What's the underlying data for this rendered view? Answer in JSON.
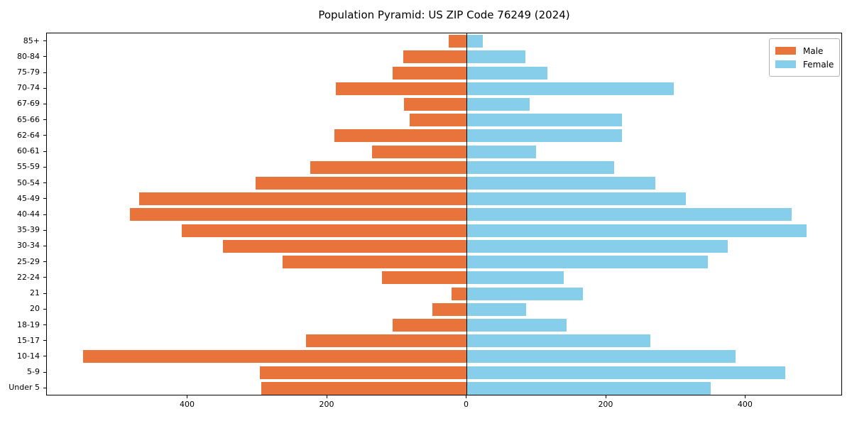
{
  "chart_data": {
    "type": "bar",
    "variant": "population-pyramid",
    "title": "Population Pyramid: US ZIP Code 76249 (2024)",
    "categories_top_to_bottom": [
      "85+",
      "80-84",
      "75-79",
      "70-74",
      "67-69",
      "65-66",
      "62-64",
      "60-61",
      "55-59",
      "50-54",
      "45-49",
      "40-44",
      "35-39",
      "30-34",
      "25-29",
      "22-24",
      "21",
      "20",
      "18-19",
      "15-17",
      "10-14",
      "5-9",
      "Under 5"
    ],
    "series": [
      {
        "name": "Male",
        "side": "left",
        "color": "#e8743b",
        "values": [
          26,
          91,
          106,
          188,
          90,
          82,
          190,
          136,
          224,
          303,
          470,
          483,
          409,
          350,
          264,
          122,
          22,
          49,
          106,
          230,
          550,
          297,
          295
        ]
      },
      {
        "name": "Female",
        "side": "right",
        "color": "#87ceeb",
        "values": [
          23,
          84,
          116,
          297,
          90,
          222,
          222,
          99,
          211,
          270,
          314,
          466,
          487,
          374,
          346,
          139,
          166,
          85,
          143,
          263,
          385,
          457,
          350
        ]
      }
    ],
    "xlim": [
      -602,
      539
    ],
    "x_ticks": [
      -400,
      -200,
      0,
      200,
      400
    ],
    "x_tick_labels": [
      "400",
      "200",
      "0",
      "200",
      "400"
    ],
    "zero_line_color": "#000000",
    "axes_frame_color": "#000000",
    "background_color": "#ffffff",
    "grid": false,
    "legend": {
      "position": "upper-right",
      "entries": [
        "Male",
        "Female"
      ]
    },
    "bar_relative_height": 0.8
  }
}
